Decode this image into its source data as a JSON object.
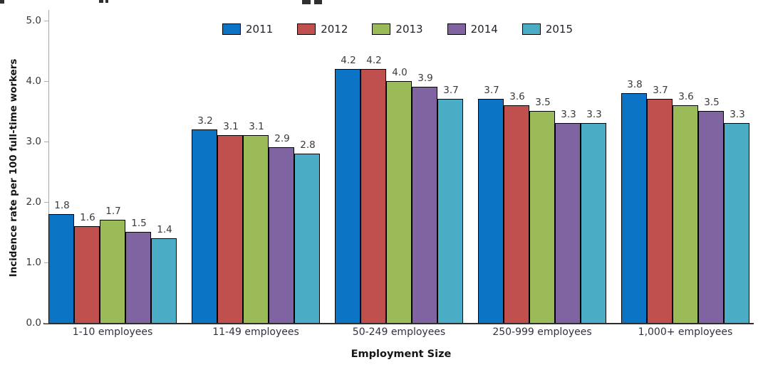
{
  "chart_data": {
    "type": "bar",
    "title": "",
    "xlabel": "Employment Size",
    "ylabel": "Incidence rate per 100 full-time workers",
    "categories": [
      "1-10 employees",
      "11-49 employees",
      "50-249 employees",
      "250-999 employees",
      "1,000+ employees"
    ],
    "series": [
      {
        "name": "2011",
        "color": "#0b74c4",
        "values": [
          1.8,
          3.2,
          4.2,
          3.7,
          3.8
        ]
      },
      {
        "name": "2012",
        "color": "#c0504d",
        "values": [
          1.6,
          3.1,
          4.2,
          3.6,
          3.7
        ]
      },
      {
        "name": "2013",
        "color": "#9bbb59",
        "values": [
          1.7,
          3.1,
          4.0,
          3.5,
          3.6
        ]
      },
      {
        "name": "2014",
        "color": "#8064a2",
        "values": [
          1.5,
          2.9,
          3.9,
          3.3,
          3.5
        ]
      },
      {
        "name": "2015",
        "color": "#4bacc6",
        "values": [
          1.4,
          2.8,
          3.7,
          3.3,
          3.3
        ]
      }
    ],
    "ylim": [
      0.0,
      5.0
    ],
    "ytick_labels": [
      "0.0",
      "1.0",
      "2.0",
      "3.0",
      "4.0",
      "5.0"
    ],
    "grid": false,
    "legend_position": "top-center",
    "bar_border_color": "#000000",
    "axis_color": "#a9a9a9"
  }
}
